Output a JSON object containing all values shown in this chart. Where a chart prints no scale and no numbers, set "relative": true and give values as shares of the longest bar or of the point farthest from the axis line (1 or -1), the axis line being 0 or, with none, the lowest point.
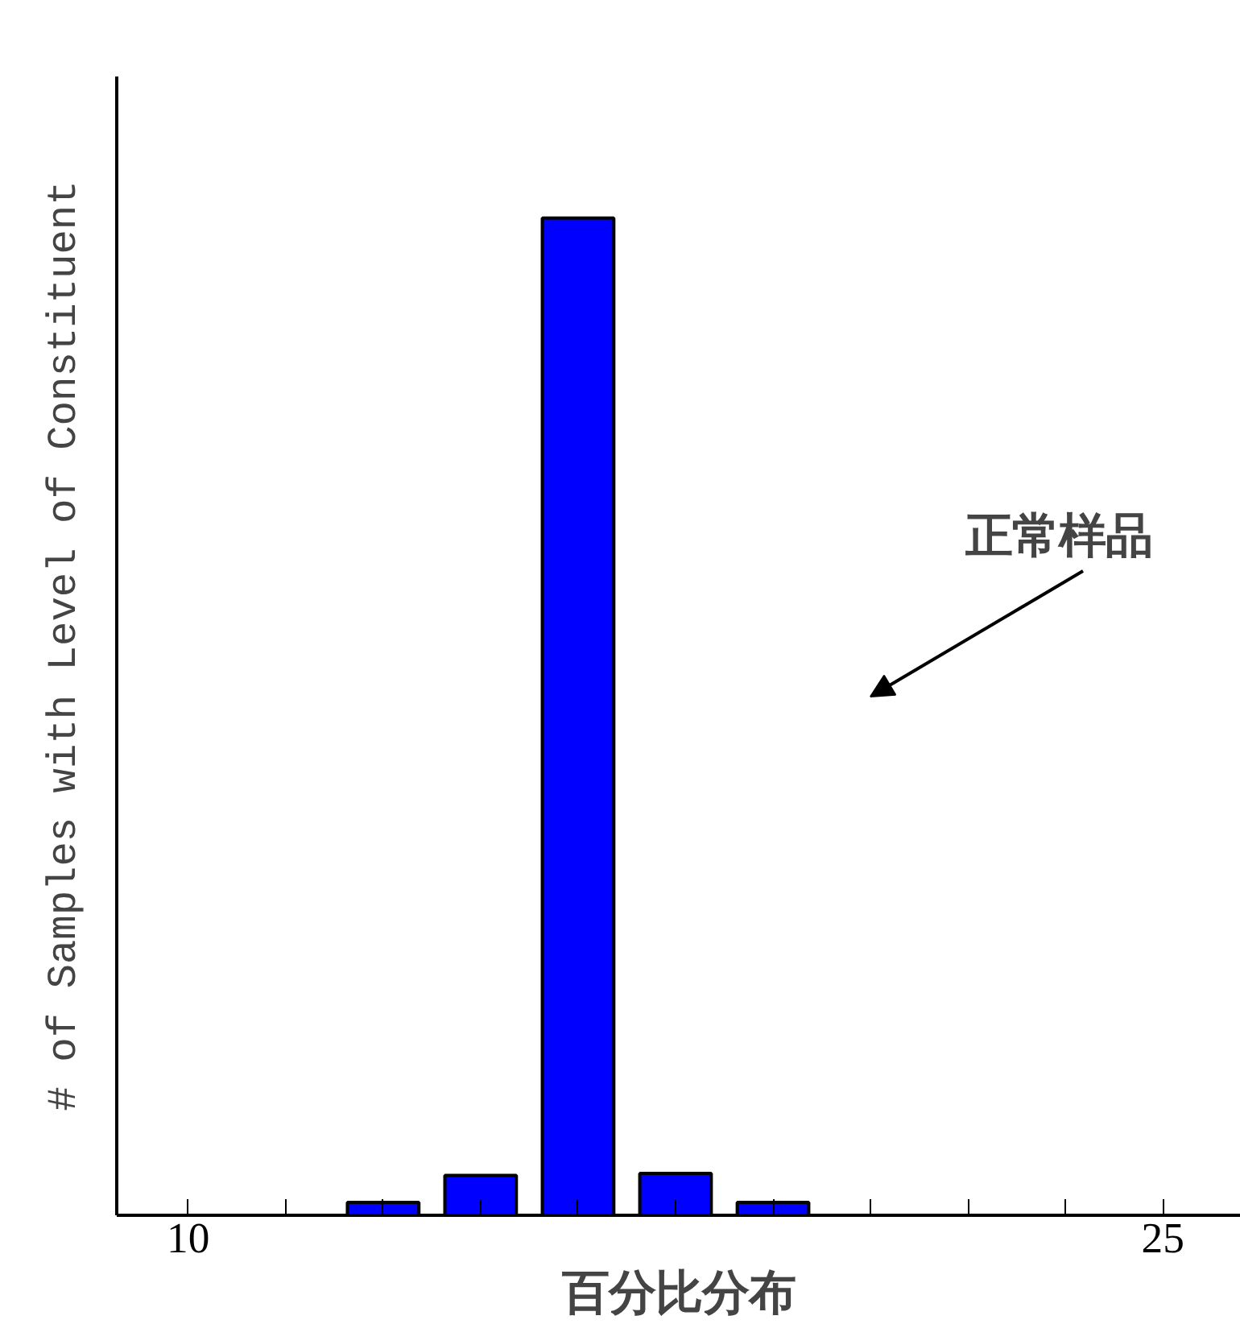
{
  "chart_data": {
    "type": "bar",
    "relative": true,
    "xlabel": "百分比分布",
    "ylabel": "# of Samples with Level of Constituent",
    "x": [
      13,
      14.5,
      16,
      17.5,
      19
    ],
    "values": [
      0.013,
      0.04,
      1,
      0.042,
      0.013
    ],
    "color": "#0000ff",
    "xlim": [
      8.9,
      26.2
    ],
    "xticks": [
      10,
      {
        "value": 11.5,
        "label": null
      },
      {
        "value": 13,
        "label": null
      },
      {
        "value": 14.5,
        "label": null
      },
      {
        "value": 16,
        "label": null
      },
      {
        "value": 17.5,
        "label": null
      },
      {
        "value": 19,
        "label": null
      },
      {
        "value": 20.5,
        "label": null
      },
      {
        "value": 22,
        "label": null
      },
      {
        "value": 23.5,
        "label": null
      },
      25
    ],
    "annotations": [
      "正常样品"
    ],
    "tick_labels": "x",
    "grid": false
  }
}
